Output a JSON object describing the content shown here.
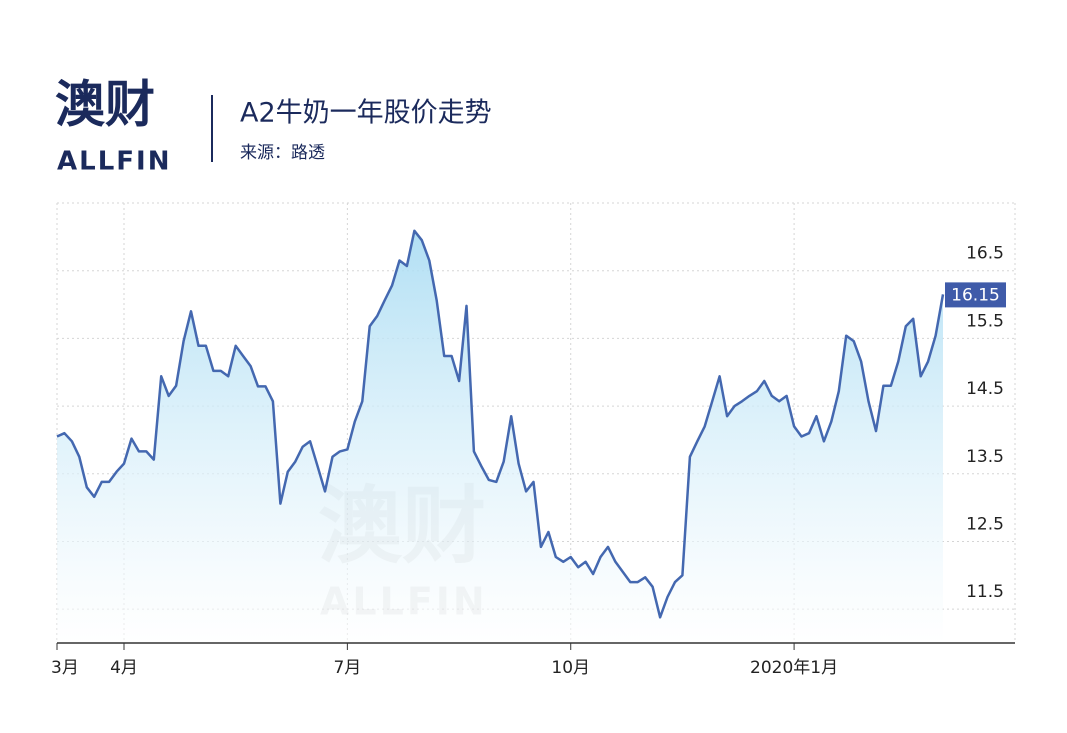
{
  "header": {
    "logo": "澳财",
    "logo_text": "ALLFIN"
  },
  "chart_data": {
    "type": "line",
    "title": "A2牛奶一年股价走势",
    "subtitle": "来源：路透",
    "categories": [
      "3月",
      null,
      null,
      null,
      null,
      null,
      null,
      null,
      null,
      "4月",
      null,
      null,
      null,
      null,
      null,
      null,
      null,
      null,
      null,
      null,
      null,
      null,
      null,
      null,
      null,
      null,
      null,
      null,
      null,
      null,
      null,
      null,
      null,
      null,
      null,
      null,
      null,
      null,
      null,
      "7月",
      null,
      null,
      null,
      null,
      null,
      null,
      null,
      null,
      null,
      null,
      null,
      null,
      null,
      null,
      null,
      null,
      null,
      null,
      null,
      null,
      null,
      null,
      null,
      null,
      null,
      null,
      null,
      null,
      null,
      "10月",
      null,
      null,
      null,
      null,
      null,
      null,
      null,
      null,
      null,
      null,
      null,
      null,
      null,
      null,
      null,
      null,
      null,
      null,
      null,
      null,
      null,
      null,
      null,
      null,
      null,
      null,
      null,
      null,
      null,
      "2020年1月",
      null,
      null,
      null,
      null,
      null,
      null,
      null,
      null,
      null,
      null,
      null,
      null,
      null,
      null,
      null,
      null,
      null,
      null,
      null,
      null
    ],
    "values": [
      14.05,
      14.1,
      13.98,
      13.75,
      13.3,
      13.16,
      13.38,
      13.38,
      13.53,
      13.65,
      14.02,
      13.83,
      13.83,
      13.71,
      14.94,
      14.65,
      14.8,
      15.46,
      15.9,
      15.39,
      15.39,
      15.02,
      15.02,
      14.94,
      15.39,
      15.24,
      15.09,
      14.79,
      14.79,
      14.57,
      13.06,
      13.53,
      13.68,
      13.9,
      13.98,
      13.61,
      13.24,
      13.75,
      13.83,
      13.86,
      14.27,
      14.57,
      15.68,
      15.83,
      16.06,
      16.28,
      16.65,
      16.57,
      17.09,
      16.95,
      16.65,
      16.06,
      15.24,
      15.24,
      14.87,
      15.98,
      13.83,
      13.61,
      13.41,
      13.38,
      13.68,
      14.35,
      13.65,
      13.24,
      13.38,
      12.42,
      12.64,
      12.27,
      12.2,
      12.27,
      12.12,
      12.2,
      12.02,
      12.27,
      12.42,
      12.2,
      12.05,
      11.9,
      11.9,
      11.97,
      11.83,
      11.38,
      11.68,
      11.9,
      12.0,
      13.75,
      13.98,
      14.2,
      14.57,
      14.94,
      14.35,
      14.5,
      14.57,
      14.65,
      14.72,
      14.87,
      14.65,
      14.57,
      14.65,
      14.2,
      14.05,
      14.1,
      14.35,
      13.98,
      14.27,
      14.72,
      15.54,
      15.46,
      15.16,
      14.57,
      14.13,
      14.8,
      14.8,
      15.16,
      15.68,
      15.79,
      14.94,
      15.16,
      15.54,
      16.15
    ],
    "color": "#4468b0",
    "ylim": [
      11,
      17.5
    ],
    "yticks": [
      11.5,
      12.5,
      13.5,
      14.5,
      15.5,
      16.5
    ],
    "grid": true,
    "area": true
  }
}
